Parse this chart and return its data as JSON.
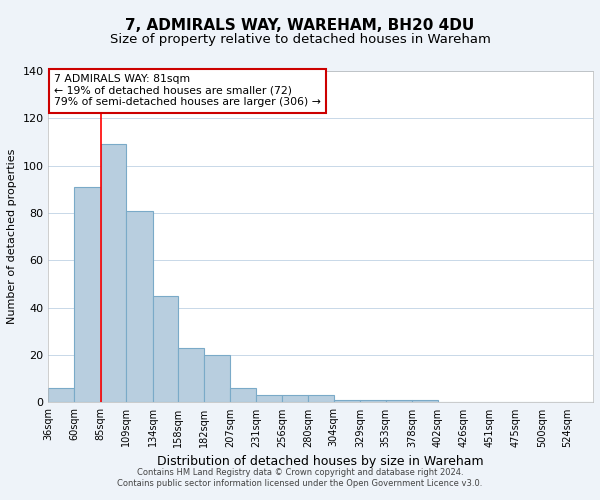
{
  "title": "7, ADMIRALS WAY, WAREHAM, BH20 4DU",
  "subtitle": "Size of property relative to detached houses in Wareham",
  "xlabel": "Distribution of detached houses by size in Wareham",
  "ylabel": "Number of detached properties",
  "bar_values": [
    6,
    91,
    109,
    81,
    45,
    23,
    20,
    6,
    3,
    3,
    3,
    1,
    1,
    1,
    1,
    0,
    0,
    0,
    0,
    0,
    0
  ],
  "bin_edges": [
    36,
    60,
    85,
    109,
    134,
    158,
    182,
    207,
    231,
    256,
    280,
    304,
    329,
    353,
    378,
    402,
    426,
    451,
    475,
    500,
    524,
    548
  ],
  "x_tick_labels": [
    "36sqm",
    "60sqm",
    "85sqm",
    "109sqm",
    "134sqm",
    "158sqm",
    "182sqm",
    "207sqm",
    "231sqm",
    "256sqm",
    "280sqm",
    "304sqm",
    "329sqm",
    "353sqm",
    "378sqm",
    "402sqm",
    "426sqm",
    "451sqm",
    "475sqm",
    "500sqm",
    "524sqm"
  ],
  "bar_color": "#b8cedf",
  "bar_edge_color": "#7aaac8",
  "red_line_x": 85,
  "ylim": [
    0,
    140
  ],
  "yticks": [
    0,
    20,
    40,
    60,
    80,
    100,
    120,
    140
  ],
  "annotation_text": "7 ADMIRALS WAY: 81sqm\n← 19% of detached houses are smaller (72)\n79% of semi-detached houses are larger (306) →",
  "annotation_box_color": "#ffffff",
  "annotation_box_edge_color": "#cc0000",
  "footer_line1": "Contains HM Land Registry data © Crown copyright and database right 2024.",
  "footer_line2": "Contains public sector information licensed under the Open Government Licence v3.0.",
  "background_color": "#eef3f9",
  "plot_bg_color": "#ffffff",
  "title_fontsize": 11,
  "subtitle_fontsize": 9.5,
  "grid_color": "#c8d8e8",
  "xlabel_fontsize": 9,
  "ylabel_fontsize": 8
}
